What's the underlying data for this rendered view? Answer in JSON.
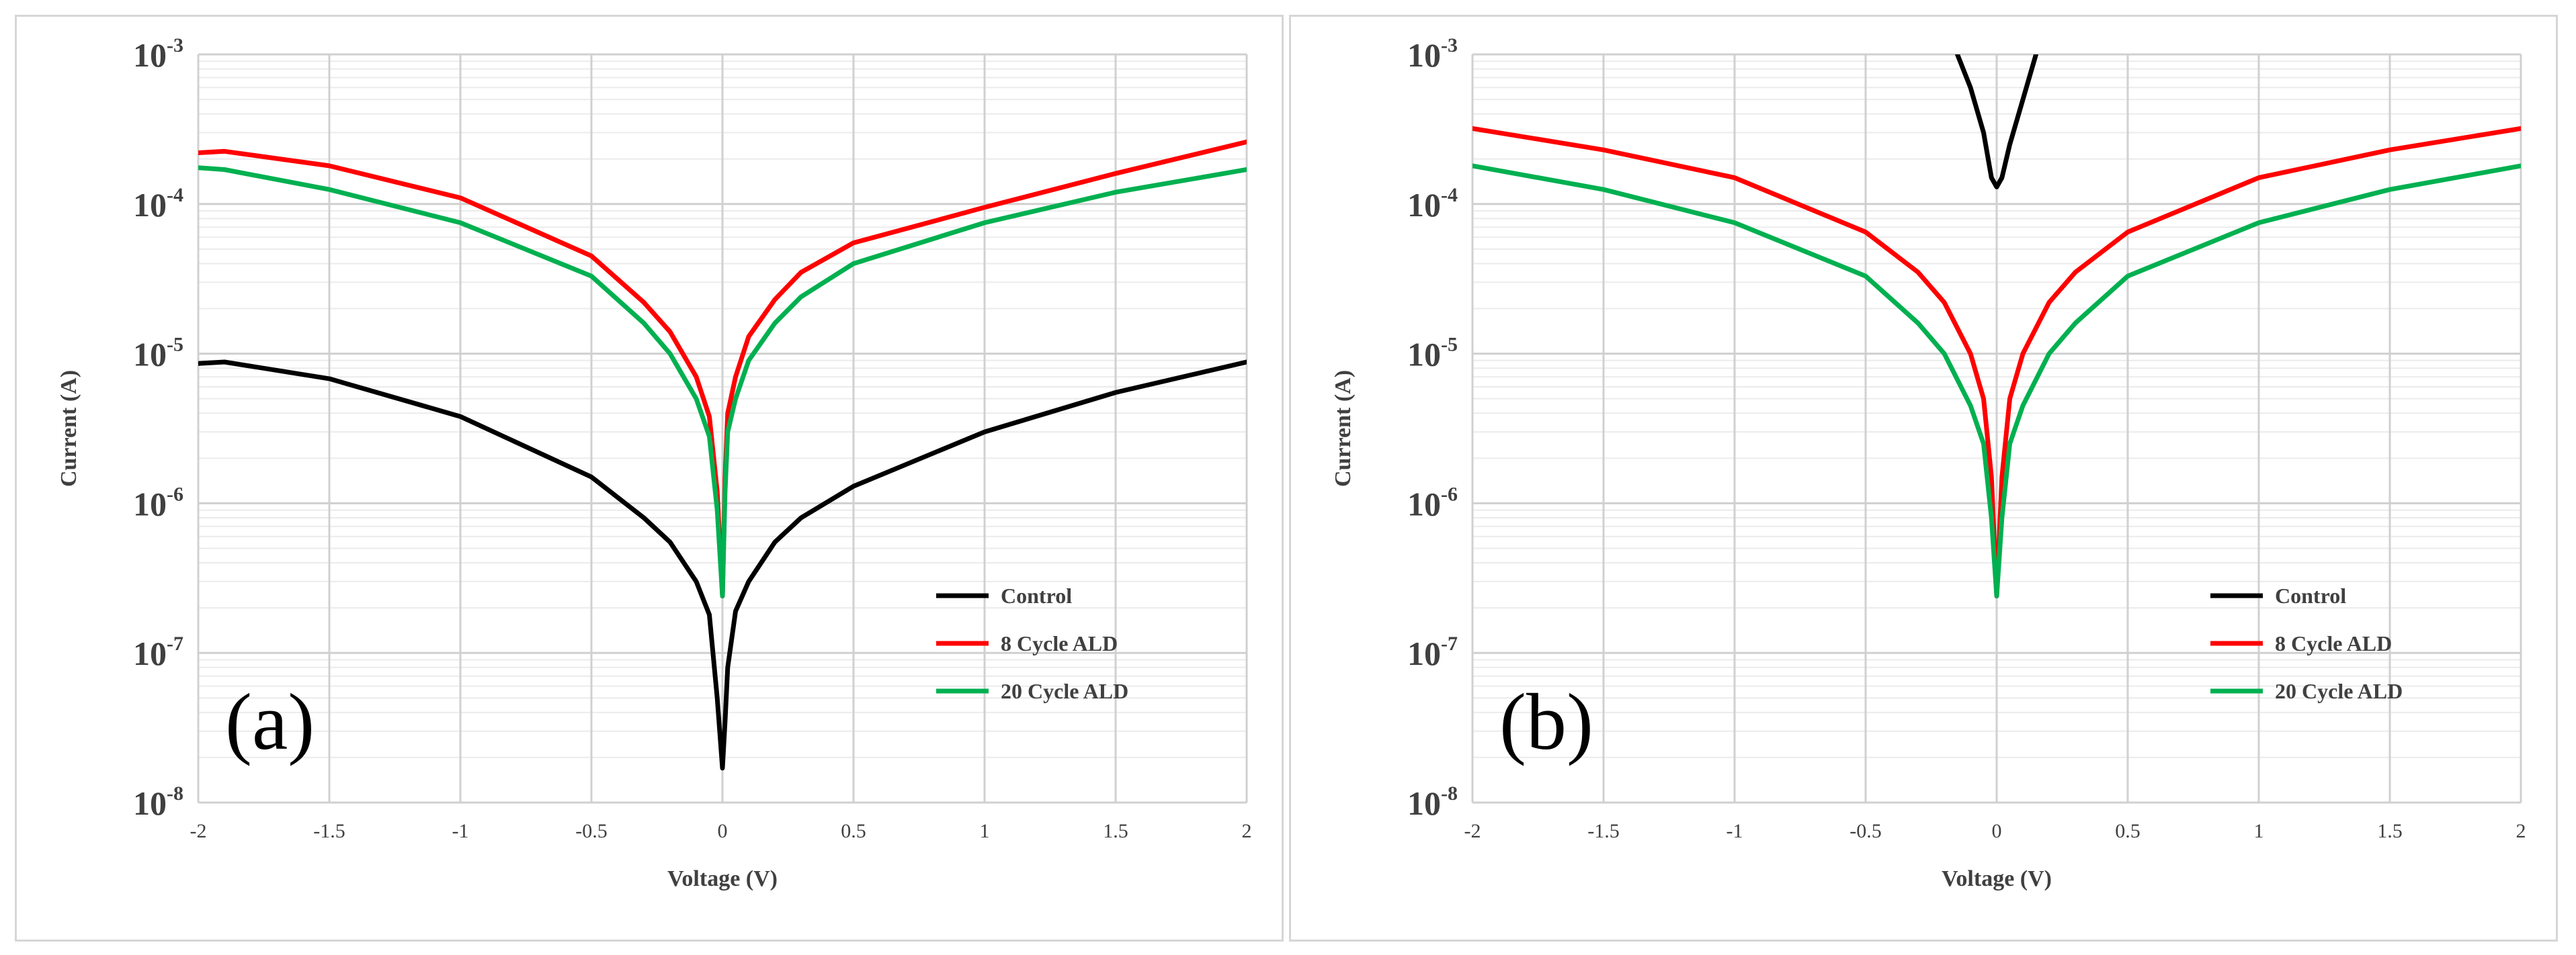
{
  "chart_data": [
    {
      "type": "line",
      "panel_label": "(a)",
      "xlabel": "Voltage (V)",
      "ylabel": "Current (A)",
      "x_scale": "linear",
      "y_scale": "log",
      "xlim": [
        -2,
        2
      ],
      "ylim": [
        1e-08,
        0.001
      ],
      "x_ticks": [
        "-2",
        "-1.5",
        "-1",
        "-0.5",
        "0",
        "0.5",
        "1",
        "1.5",
        "2"
      ],
      "y_ticks": [
        {
          "base": "10",
          "exp": "-8"
        },
        {
          "base": "10",
          "exp": "-7"
        },
        {
          "base": "10",
          "exp": "-6"
        },
        {
          "base": "10",
          "exp": "-5"
        },
        {
          "base": "10",
          "exp": "-4"
        },
        {
          "base": "10",
          "exp": "-3"
        }
      ],
      "grid": true,
      "legend_position": "bottom-right",
      "series": [
        {
          "name": "Control",
          "color": "#000000",
          "x": [
            -2,
            -1.9,
            -1.5,
            -1.0,
            -0.5,
            -0.3,
            -0.2,
            -0.1,
            -0.05,
            -0.02,
            0.0,
            0.01,
            0.02,
            0.05,
            0.1,
            0.2,
            0.3,
            0.5,
            1.0,
            1.5,
            2.0
          ],
          "y": [
            8.6e-06,
            8.8e-06,
            6.8e-06,
            3.8e-06,
            1.5e-06,
            8e-07,
            5.5e-07,
            3e-07,
            1.8e-07,
            5e-08,
            1.7e-08,
            3.5e-08,
            8e-08,
            1.9e-07,
            3e-07,
            5.5e-07,
            8e-07,
            1.3e-06,
            3e-06,
            5.5e-06,
            8.8e-06
          ]
        },
        {
          "name": "8 Cycle ALD",
          "color": "#ff0000",
          "x": [
            -2,
            -1.9,
            -1.5,
            -1.0,
            -0.5,
            -0.3,
            -0.2,
            -0.1,
            -0.05,
            -0.02,
            0.0,
            0.01,
            0.02,
            0.05,
            0.1,
            0.2,
            0.3,
            0.5,
            1.0,
            1.5,
            2.0
          ],
          "y": [
            0.00022,
            0.000225,
            0.00018,
            0.00011,
            4.5e-05,
            2.2e-05,
            1.4e-05,
            7e-06,
            3.8e-06,
            1.2e-06,
            2.4e-07,
            1.5e-06,
            4e-06,
            7e-06,
            1.3e-05,
            2.3e-05,
            3.5e-05,
            5.5e-05,
            9.5e-05,
            0.00016,
            0.00026
          ]
        },
        {
          "name": "20 Cycle ALD",
          "color": "#00b050",
          "x": [
            -2,
            -1.9,
            -1.5,
            -1.0,
            -0.5,
            -0.3,
            -0.2,
            -0.1,
            -0.05,
            -0.02,
            0.0,
            0.01,
            0.02,
            0.05,
            0.1,
            0.2,
            0.3,
            0.5,
            1.0,
            1.5,
            2.0
          ],
          "y": [
            0.000175,
            0.00017,
            0.000125,
            7.5e-05,
            3.3e-05,
            1.6e-05,
            1e-05,
            5e-06,
            2.8e-06,
            9e-07,
            2.4e-07,
            1.2e-06,
            3e-06,
            5e-06,
            9e-06,
            1.6e-05,
            2.4e-05,
            4e-05,
            7.5e-05,
            0.00012,
            0.00017
          ]
        }
      ]
    },
    {
      "type": "line",
      "panel_label": "(b)",
      "xlabel": "Voltage (V)",
      "ylabel": "Current (A)",
      "x_scale": "linear",
      "y_scale": "log",
      "xlim": [
        -2,
        2
      ],
      "ylim": [
        1e-08,
        0.001
      ],
      "x_ticks": [
        "-2",
        "-1.5",
        "-1",
        "-0.5",
        "0",
        "0.5",
        "1",
        "1.5",
        "2"
      ],
      "y_ticks": [
        {
          "base": "10",
          "exp": "-8"
        },
        {
          "base": "10",
          "exp": "-7"
        },
        {
          "base": "10",
          "exp": "-6"
        },
        {
          "base": "10",
          "exp": "-5"
        },
        {
          "base": "10",
          "exp": "-4"
        },
        {
          "base": "10",
          "exp": "-3"
        }
      ],
      "grid": true,
      "legend_position": "bottom-right",
      "series": [
        {
          "name": "Control",
          "color": "#000000",
          "x": [
            -0.15,
            -0.1,
            -0.05,
            -0.02,
            0.0,
            0.02,
            0.05,
            0.1,
            0.15
          ],
          "y": [
            0.001,
            0.0006,
            0.0003,
            0.00015,
            0.00013,
            0.00015,
            0.00025,
            0.0005,
            0.001
          ]
        },
        {
          "name": "8 Cycle ALD",
          "color": "#ff0000",
          "x": [
            -2,
            -1.5,
            -1.0,
            -0.5,
            -0.3,
            -0.2,
            -0.1,
            -0.05,
            -0.02,
            0.0,
            0.02,
            0.05,
            0.1,
            0.2,
            0.3,
            0.5,
            1.0,
            1.5,
            2.0
          ],
          "y": [
            0.00032,
            0.00023,
            0.00015,
            6.5e-05,
            3.5e-05,
            2.2e-05,
            1e-05,
            5e-06,
            1.5e-06,
            2.4e-07,
            1.5e-06,
            5e-06,
            1e-05,
            2.2e-05,
            3.5e-05,
            6.5e-05,
            0.00015,
            0.00023,
            0.00032
          ]
        },
        {
          "name": "20 Cycle ALD",
          "color": "#00b050",
          "x": [
            -2,
            -1.5,
            -1.0,
            -0.5,
            -0.3,
            -0.2,
            -0.1,
            -0.05,
            -0.02,
            0.0,
            0.02,
            0.05,
            0.1,
            0.2,
            0.3,
            0.5,
            1.0,
            1.5,
            2.0
          ],
          "y": [
            0.00018,
            0.000125,
            7.5e-05,
            3.3e-05,
            1.6e-05,
            1e-05,
            4.5e-06,
            2.5e-06,
            8e-07,
            2.4e-07,
            8e-07,
            2.5e-06,
            4.5e-06,
            1e-05,
            1.6e-05,
            3.3e-05,
            7.5e-05,
            0.000125,
            0.00018
          ]
        }
      ]
    }
  ]
}
